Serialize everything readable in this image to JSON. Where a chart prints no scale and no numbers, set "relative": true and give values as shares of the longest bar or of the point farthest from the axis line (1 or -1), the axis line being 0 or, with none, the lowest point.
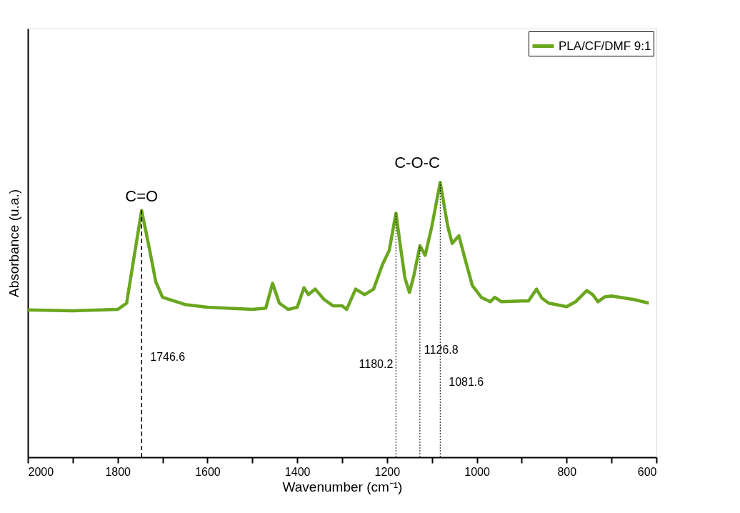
{
  "chart_data": {
    "type": "line",
    "relative": true,
    "xlabel": "Wavenumber (cm⁻¹)",
    "ylabel": "Absorbance (u.a.)",
    "xlim": [
      2000,
      600
    ],
    "xticks": [
      2000,
      {
        "value": 1900,
        "label": null
      },
      1800,
      {
        "value": 1700,
        "label": null
      },
      1600,
      {
        "value": 1500,
        "label": null
      },
      1400,
      {
        "value": 1300,
        "label": null
      },
      1200,
      {
        "value": 1100,
        "label": null
      },
      1000,
      {
        "value": 900,
        "label": null
      },
      800,
      {
        "value": 700,
        "label": null
      },
      600
    ],
    "series": [
      {
        "name": "PLA/CF/DMF 9:1",
        "color": "#6aa61e",
        "x": [
          2000,
          1900,
          1800,
          1780,
          1765,
          1746.6,
          1730,
          1715,
          1700,
          1650,
          1600,
          1500,
          1470,
          1455,
          1440,
          1420,
          1400,
          1385,
          1375,
          1360,
          1340,
          1320,
          1300,
          1290,
          1270,
          1250,
          1230,
          1210,
          1195,
          1180.2,
          1170,
          1160,
          1150,
          1140,
          1126.8,
          1115,
          1100,
          1081.6,
          1065,
          1055,
          1040,
          1025,
          1010,
          990,
          970,
          960,
          945,
          900,
          885,
          867,
          855,
          840,
          800,
          780,
          755,
          742,
          730,
          715,
          700,
          650,
          617
        ],
        "values": [
          0.536,
          0.533,
          0.538,
          0.561,
          0.714,
          0.898,
          0.765,
          0.638,
          0.582,
          0.556,
          0.546,
          0.538,
          0.543,
          0.633,
          0.561,
          0.538,
          0.546,
          0.617,
          0.592,
          0.612,
          0.574,
          0.551,
          0.551,
          0.538,
          0.612,
          0.592,
          0.612,
          0.702,
          0.753,
          0.888,
          0.765,
          0.651,
          0.6,
          0.663,
          0.77,
          0.735,
          0.842,
          1.0,
          0.842,
          0.778,
          0.806,
          0.714,
          0.625,
          0.582,
          0.566,
          0.582,
          0.566,
          0.569,
          0.569,
          0.612,
          0.579,
          0.561,
          0.548,
          0.566,
          0.607,
          0.592,
          0.566,
          0.584,
          0.587,
          0.574,
          0.561
        ]
      }
    ],
    "ref_lines": [
      {
        "axis": "x",
        "value": 1746.6,
        "label": "1746.6",
        "line_style": "dashed"
      },
      {
        "axis": "x",
        "value": 1180.2,
        "label": "1180.2",
        "line_style": "dotted"
      },
      {
        "axis": "x",
        "value": 1126.8,
        "label": "1126.8",
        "line_style": "dotted"
      },
      {
        "axis": "x",
        "value": 1081.6,
        "label": "1081.6",
        "line_style": "dotted"
      }
    ],
    "annotations": [
      {
        "text": "C=O",
        "x": 1746.6,
        "y": 0.898
      },
      "C-O-C"
    ],
    "legend": "top right",
    "grid": false,
    "line_style": "solid",
    "marker": "none"
  }
}
